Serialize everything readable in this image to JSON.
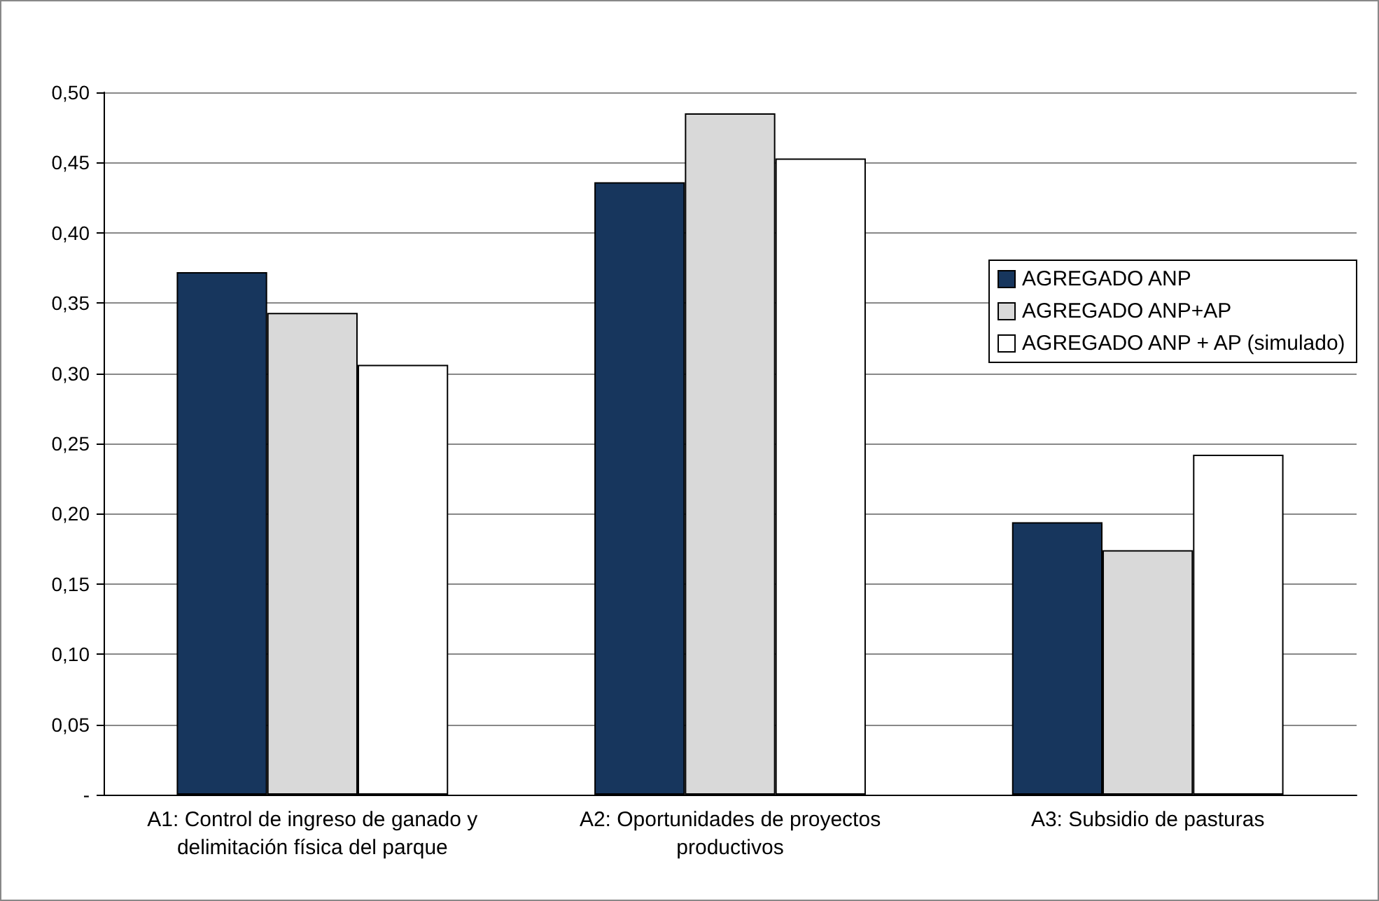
{
  "chart_data": {
    "type": "bar",
    "categories": [
      "A1: Control de ingreso de ganado y\ndelimitación física del parque",
      "A2: Oportunidades de proyectos\nproductivos",
      "A3: Subsidio de pasturas"
    ],
    "series": [
      {
        "name": "AGREGADO ANP",
        "color": "#17365d",
        "values": [
          0.372,
          0.436,
          0.194
        ]
      },
      {
        "name": "AGREGADO ANP+AP",
        "color": "#d9d9d9",
        "values": [
          0.343,
          0.485,
          0.174
        ]
      },
      {
        "name": "AGREGADO ANP + AP (simulado)",
        "color": "#ffffff",
        "values": [
          0.306,
          0.453,
          0.242
        ]
      }
    ],
    "ylim": [
      0,
      0.5
    ],
    "yticks": [
      {
        "value": 0,
        "label": "-"
      },
      {
        "value": 0.05,
        "label": "0,05"
      },
      {
        "value": 0.1,
        "label": "0,10"
      },
      {
        "value": 0.15,
        "label": "0,15"
      },
      {
        "value": 0.2,
        "label": "0,20"
      },
      {
        "value": 0.25,
        "label": "0,25"
      },
      {
        "value": 0.3,
        "label": "0,30"
      },
      {
        "value": 0.35,
        "label": "0,35"
      },
      {
        "value": 0.4,
        "label": "0,40"
      },
      {
        "value": 0.45,
        "label": "0,45"
      },
      {
        "value": 0.5,
        "label": "0,50"
      }
    ],
    "grid": "y",
    "legend": "right"
  }
}
